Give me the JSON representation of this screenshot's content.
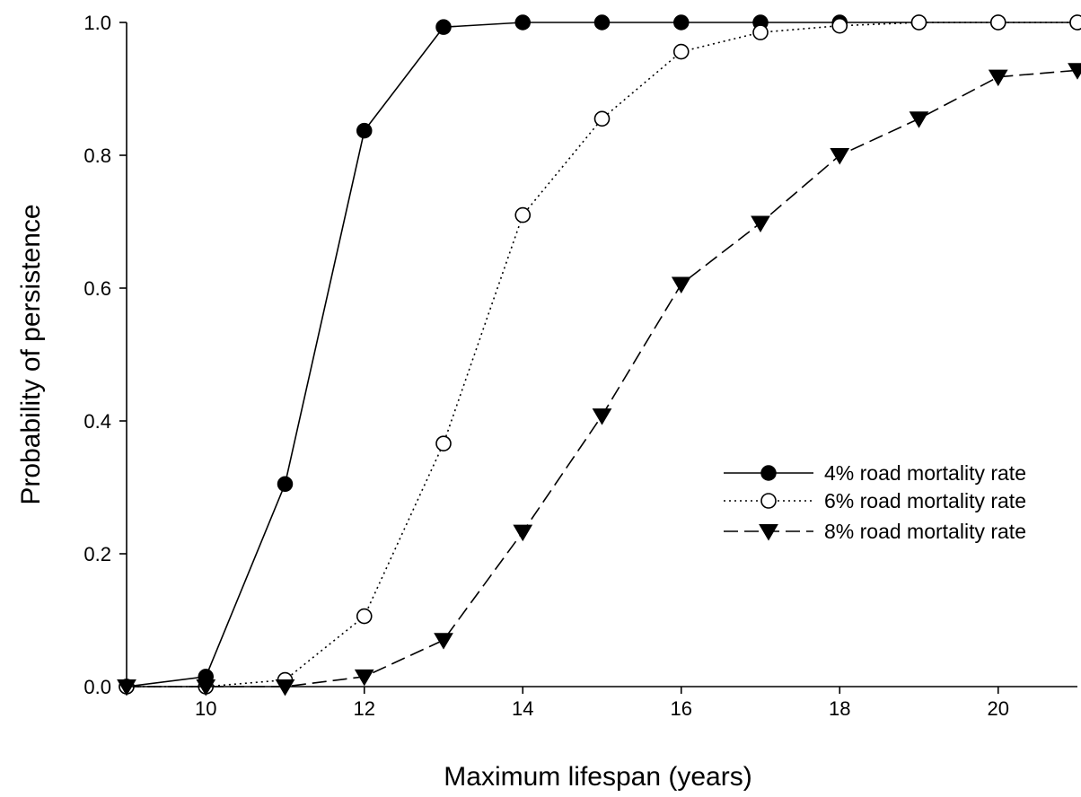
{
  "chart_data": {
    "type": "line",
    "title": "",
    "xlabel": "Maximum lifespan (years)",
    "ylabel": "Probability of persistence",
    "xlim": [
      9,
      21
    ],
    "ylim": [
      0,
      1.0
    ],
    "xticks": [
      10,
      12,
      14,
      16,
      18,
      20
    ],
    "yticks": [
      0.0,
      0.2,
      0.4,
      0.6,
      0.8,
      1.0
    ],
    "xtick_labels": [
      "10",
      "12",
      "14",
      "16",
      "18",
      "20"
    ],
    "ytick_labels": [
      "0.0",
      "0.2",
      "0.4",
      "0.6",
      "0.8",
      "1.0"
    ],
    "grid": false,
    "legend_position": "center-right",
    "series": [
      {
        "name": "4% road mortality rate",
        "marker": "filled-circle",
        "line_style": "solid",
        "color": "#000000",
        "x": [
          9,
          10,
          11,
          12,
          13,
          14,
          15,
          16,
          17,
          18,
          19,
          20,
          21
        ],
        "y": [
          0.0,
          0.015,
          0.305,
          0.837,
          0.993,
          1.0,
          1.0,
          1.0,
          1.0,
          1.0,
          1.0,
          1.0,
          1.0
        ]
      },
      {
        "name": "6% road mortality rate",
        "marker": "open-circle",
        "line_style": "dotted",
        "color": "#000000",
        "x": [
          9,
          10,
          11,
          12,
          13,
          14,
          15,
          16,
          17,
          18,
          19,
          20,
          21
        ],
        "y": [
          0.0,
          0.0,
          0.01,
          0.106,
          0.366,
          0.71,
          0.855,
          0.956,
          0.985,
          0.995,
          1.0,
          1.0,
          1.0
        ]
      },
      {
        "name": "8% road mortality rate",
        "marker": "filled-triangle-down",
        "line_style": "dashed",
        "color": "#000000",
        "x": [
          9,
          10,
          11,
          12,
          13,
          14,
          15,
          16,
          17,
          18,
          19,
          20,
          21
        ],
        "y": [
          0.0,
          0.0,
          0.0,
          0.015,
          0.07,
          0.233,
          0.408,
          0.606,
          0.698,
          0.8,
          0.855,
          0.918,
          0.928
        ]
      }
    ]
  }
}
